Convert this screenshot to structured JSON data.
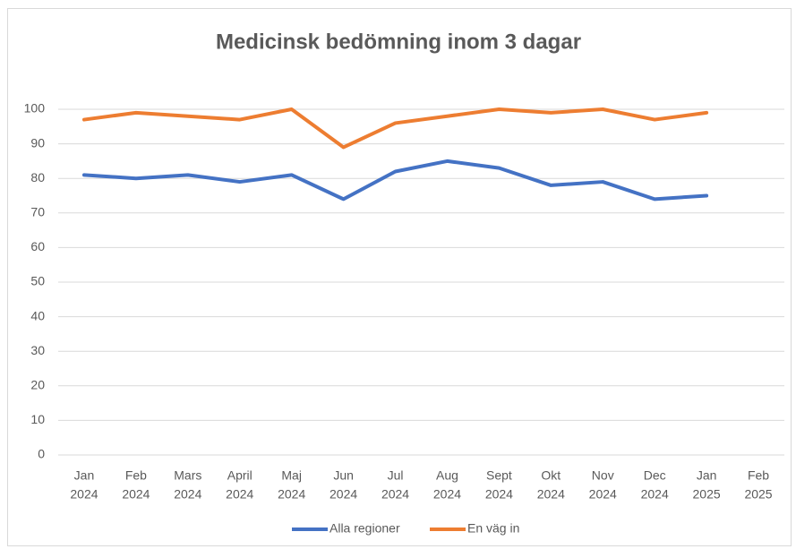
{
  "chart_data": {
    "type": "line",
    "title": "Medicinsk bedömning inom 3 dagar",
    "categories": [
      [
        "Jan",
        "2024"
      ],
      [
        "Feb",
        "2024"
      ],
      [
        "Mars",
        "2024"
      ],
      [
        "April",
        "2024"
      ],
      [
        "Maj",
        "2024"
      ],
      [
        "Jun",
        "2024"
      ],
      [
        "Jul",
        "2024"
      ],
      [
        "Aug",
        "2024"
      ],
      [
        "Sept",
        "2024"
      ],
      [
        "Okt",
        "2024"
      ],
      [
        "Nov",
        "2024"
      ],
      [
        "Dec",
        "2024"
      ],
      [
        "Jan",
        "2025"
      ],
      [
        "Feb",
        "2025"
      ]
    ],
    "series": [
      {
        "name": "Alla regioner",
        "color": "#4472c4",
        "values": [
          81,
          80,
          81,
          79,
          81,
          74,
          82,
          85,
          83,
          78,
          79,
          74,
          75,
          null
        ]
      },
      {
        "name": "En väg in",
        "color": "#ed7d31",
        "values": [
          97,
          99,
          98,
          97,
          100,
          89,
          96,
          98,
          100,
          99,
          100,
          97,
          99,
          null
        ]
      }
    ],
    "ylim": [
      0,
      100
    ],
    "yticks": [
      0,
      10,
      20,
      30,
      40,
      50,
      60,
      70,
      80,
      90,
      100
    ],
    "grid": true,
    "legend": "bottom"
  }
}
